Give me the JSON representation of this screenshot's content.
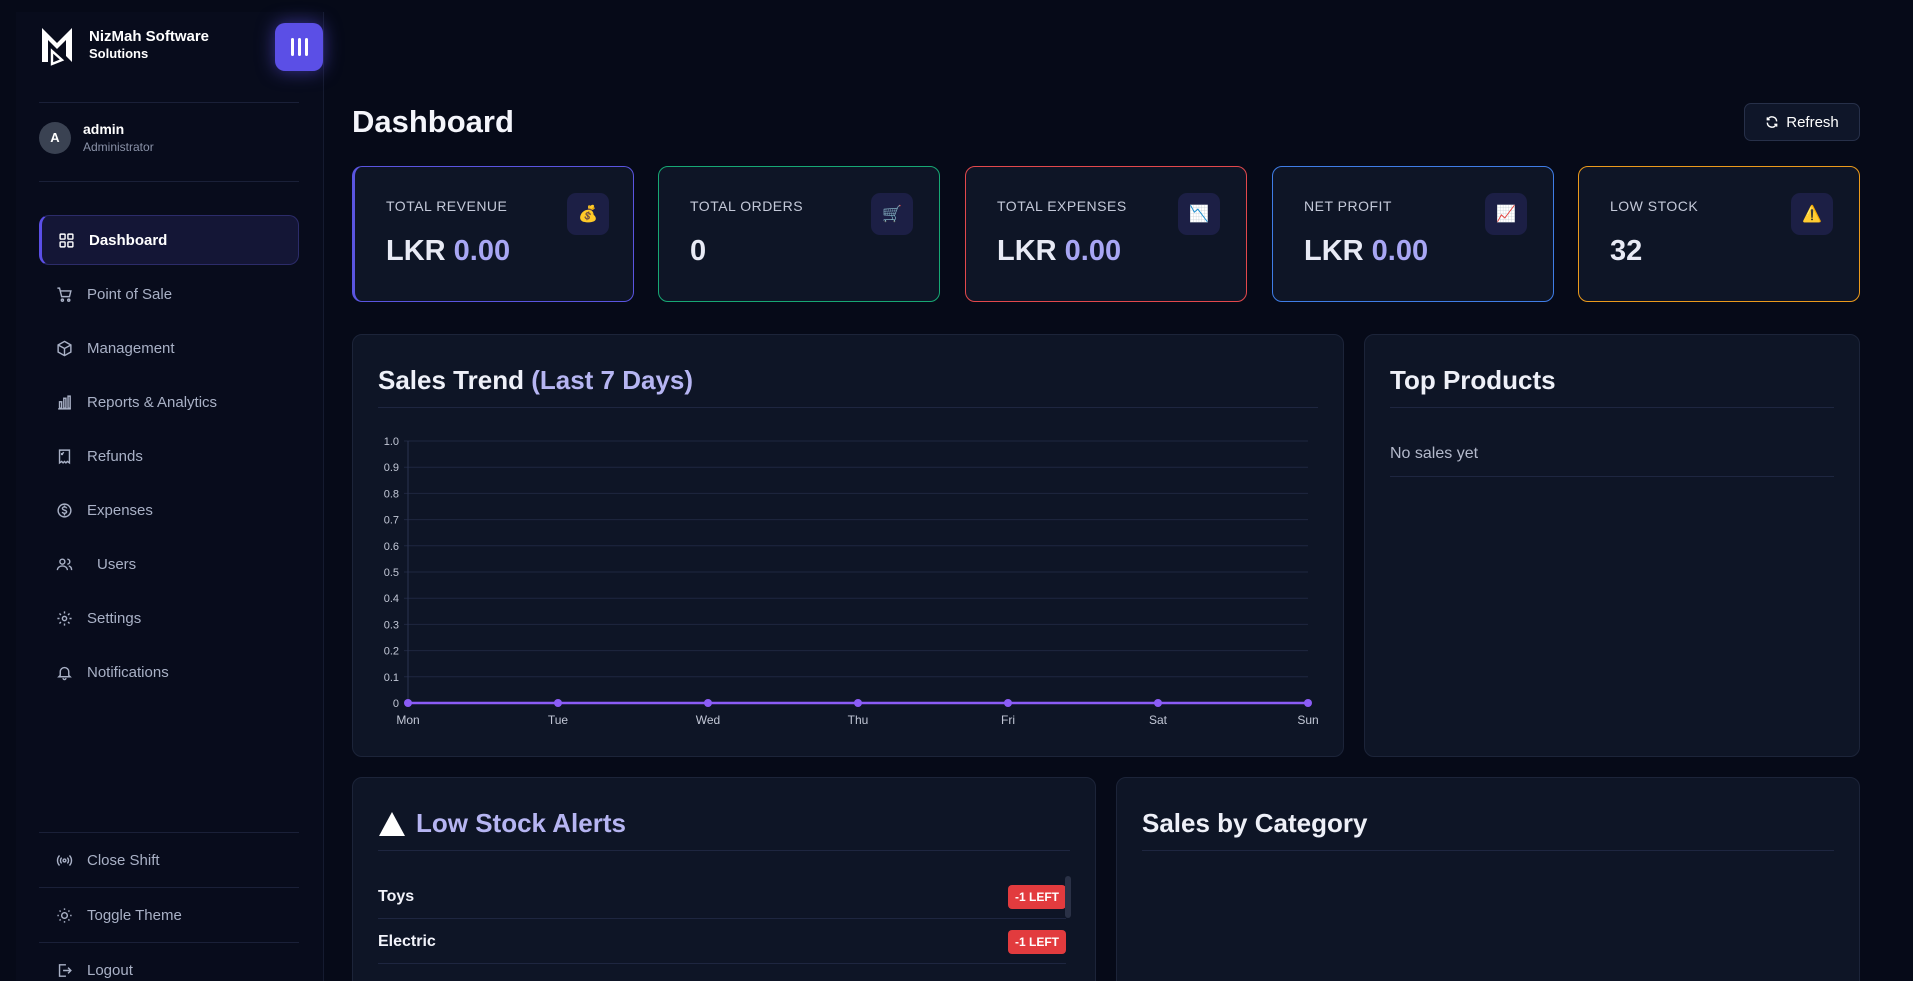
{
  "brand": {
    "line1": "NizMah Software",
    "line2": "Solutions"
  },
  "user": {
    "initial": "A",
    "name": "admin",
    "role": "Administrator"
  },
  "nav": [
    {
      "label": "Dashboard",
      "icon": "grid-icon",
      "active": true
    },
    {
      "label": "Point of Sale",
      "icon": "cart-icon"
    },
    {
      "label": "Management",
      "icon": "box-icon"
    },
    {
      "label": "Reports & Analytics",
      "icon": "bar-chart-icon"
    },
    {
      "label": "Refunds",
      "icon": "refund-icon"
    },
    {
      "label": "Expenses",
      "icon": "dollar-icon"
    },
    {
      "label": "Users",
      "icon": "users-icon"
    },
    {
      "label": "Settings",
      "icon": "gear-icon"
    },
    {
      "label": "Notifications",
      "icon": "bell-icon"
    }
  ],
  "bottom_nav": [
    {
      "label": "Close Shift",
      "icon": "broadcast-icon"
    },
    {
      "label": "Toggle Theme",
      "icon": "sun-icon"
    },
    {
      "label": "Logout",
      "icon": "logout-icon"
    }
  ],
  "page": {
    "title": "Dashboard",
    "refresh_label": "Refresh"
  },
  "stats": [
    {
      "label": "TOTAL REVENUE",
      "prefix": "LKR",
      "value": "0.00",
      "icon": "💰",
      "color": "#5a55e0"
    },
    {
      "label": "TOTAL ORDERS",
      "prefix": "",
      "value": "0",
      "icon": "🛒",
      "color": "#17a874"
    },
    {
      "label": "TOTAL EXPENSES",
      "prefix": "LKR",
      "value": "0.00",
      "icon": "📉",
      "color": "#e2484c"
    },
    {
      "label": "NET PROFIT",
      "prefix": "LKR",
      "value": "0.00",
      "icon": "📈",
      "color": "#3f7de6"
    },
    {
      "label": "LOW STOCK",
      "prefix": "",
      "value": "32",
      "icon": "⚠️",
      "color": "#eb9a1c"
    }
  ],
  "sales_trend": {
    "title": "Sales Trend",
    "title_accent": "(Last 7 Days)"
  },
  "top_products": {
    "title": "Top Products",
    "empty_text": "No sales yet"
  },
  "low_stock_alerts": {
    "title": "Low Stock Alerts",
    "items": [
      {
        "name": "Toys",
        "badge": "-1 LEFT"
      },
      {
        "name": "Electric",
        "badge": "-1 LEFT"
      }
    ]
  },
  "sales_by_category": {
    "title": "Sales by Category"
  },
  "chart_data": {
    "type": "line",
    "title": "",
    "categories": [
      "Mon",
      "Tue",
      "Wed",
      "Thu",
      "Fri",
      "Sat",
      "Sun"
    ],
    "series": [
      {
        "values": [
          0,
          0,
          0,
          0,
          0,
          0,
          0
        ],
        "color": "#8b5cf6"
      }
    ],
    "ylim": [
      0,
      1.0
    ],
    "yticks": [
      "0",
      "0.1",
      "0.2",
      "0.3",
      "0.4",
      "0.5",
      "0.6",
      "0.7",
      "0.8",
      "0.9",
      "1.0"
    ],
    "grid": true,
    "legend": "none"
  }
}
